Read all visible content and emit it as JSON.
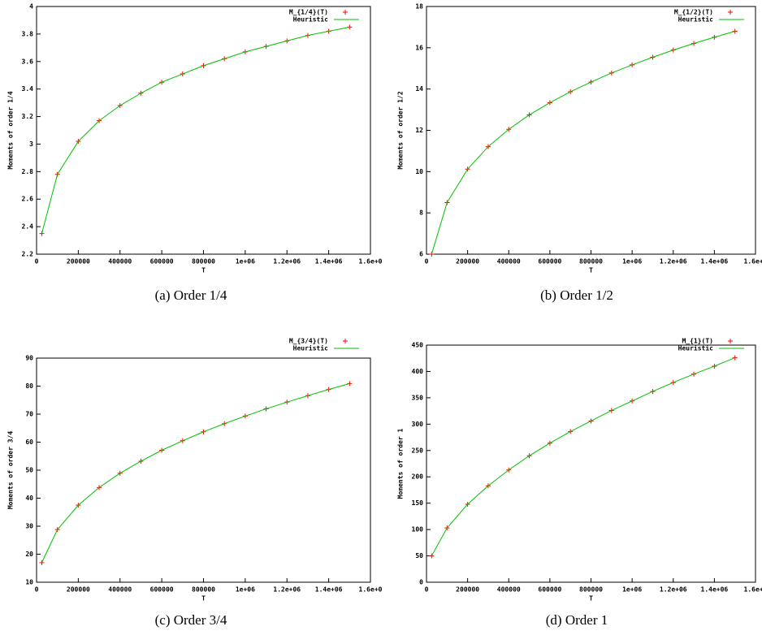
{
  "chart_data": [
    {
      "type": "line",
      "caption": "(a) Order 1/4",
      "x_label": "T",
      "y_label": "Moments of order 1/4",
      "x": [
        25000,
        100000,
        200000,
        300000,
        400000,
        500000,
        600000,
        700000,
        800000,
        900000,
        1000000,
        1100000,
        1200000,
        1300000,
        1400000,
        1500000
      ],
      "series": [
        {
          "name": "M_{1/4}(T)",
          "color": "#ff0000",
          "mode": "markers",
          "values": [
            2.35,
            2.78,
            3.02,
            3.17,
            3.28,
            3.37,
            3.45,
            3.51,
            3.57,
            3.62,
            3.67,
            3.71,
            3.75,
            3.79,
            3.82,
            3.85
          ]
        },
        {
          "name": "Heuristic",
          "color": "#00c000",
          "mode": "lines",
          "values": [
            2.35,
            2.78,
            3.02,
            3.17,
            3.28,
            3.37,
            3.45,
            3.51,
            3.57,
            3.62,
            3.67,
            3.71,
            3.75,
            3.79,
            3.82,
            3.85
          ]
        }
      ],
      "xlim": [
        0,
        1600000
      ],
      "xticks": [
        0,
        200000,
        400000,
        600000,
        800000,
        {
          "value": 1000000,
          "label": "1e+06"
        },
        {
          "value": 1200000,
          "label": "1.2e+06"
        },
        {
          "value": 1400000,
          "label": "1.4e+06"
        },
        {
          "value": 1600000,
          "label": "1.6e+0"
        }
      ],
      "ylim": [
        2.2,
        4
      ],
      "yticks": [
        2.2,
        2.4,
        2.6,
        2.8,
        3,
        3.2,
        3.4,
        3.6,
        3.8,
        4
      ]
    },
    {
      "type": "line",
      "caption": "(b) Order 1/2",
      "x_label": "T",
      "y_label": "Moments of order 1/2",
      "x": [
        25000,
        100000,
        200000,
        300000,
        400000,
        500000,
        600000,
        700000,
        800000,
        900000,
        1000000,
        1100000,
        1200000,
        1300000,
        1400000,
        1500000
      ],
      "series": [
        {
          "name": "M_{1/2}(T)",
          "color": "#ff0000",
          "mode": "markers",
          "values": [
            6.0,
            8.5,
            10.12,
            11.21,
            12.05,
            12.75,
            13.34,
            13.87,
            14.34,
            14.78,
            15.17,
            15.54,
            15.89,
            16.21,
            16.51,
            16.8
          ]
        },
        {
          "name": "Heuristic",
          "color": "#00c000",
          "mode": "lines",
          "values": [
            6.0,
            8.5,
            10.12,
            11.21,
            12.05,
            12.75,
            13.34,
            13.87,
            14.34,
            14.78,
            15.17,
            15.54,
            15.89,
            16.21,
            16.51,
            16.8
          ]
        }
      ],
      "xlim": [
        0,
        1600000
      ],
      "xticks": [
        0,
        200000,
        400000,
        600000,
        800000,
        {
          "value": 1000000,
          "label": "1e+06"
        },
        {
          "value": 1200000,
          "label": "1.2e+06"
        },
        {
          "value": 1400000,
          "label": "1.4e+06"
        },
        {
          "value": 1600000,
          "label": "1.6e+0"
        }
      ],
      "ylim": [
        6,
        18
      ],
      "yticks": [
        6,
        8,
        10,
        12,
        14,
        16,
        18
      ]
    },
    {
      "type": "line",
      "caption": "(c) Order 3/4",
      "x_label": "T",
      "y_label": "Moments of order 3/4",
      "x": [
        25000,
        100000,
        200000,
        300000,
        400000,
        500000,
        600000,
        700000,
        800000,
        900000,
        1000000,
        1100000,
        1200000,
        1300000,
        1400000,
        1500000
      ],
      "series": [
        {
          "name": "M_{3/4}(T)",
          "color": "#ff0000",
          "mode": "markers",
          "values": [
            17.0,
            28.8,
            37.5,
            43.8,
            48.9,
            53.2,
            57.1,
            60.5,
            63.7,
            66.6,
            69.3,
            71.9,
            74.3,
            76.6,
            78.8,
            80.9
          ]
        },
        {
          "name": "Heuristic",
          "color": "#00c000",
          "mode": "lines",
          "values": [
            17.0,
            28.8,
            37.5,
            43.8,
            48.9,
            53.2,
            57.1,
            60.5,
            63.7,
            66.6,
            69.3,
            71.9,
            74.3,
            76.6,
            78.8,
            80.9
          ]
        }
      ],
      "xlim": [
        0,
        1600000
      ],
      "xticks": [
        0,
        200000,
        400000,
        600000,
        800000,
        {
          "value": 1000000,
          "label": "1e+06"
        },
        {
          "value": 1200000,
          "label": "1.2e+06"
        },
        {
          "value": 1400000,
          "label": "1.4e+06"
        },
        {
          "value": 1600000,
          "label": "1.6e+0"
        }
      ],
      "ylim": [
        10,
        90
      ],
      "yticks": [
        10,
        20,
        30,
        40,
        50,
        60,
        70,
        80,
        90
      ]
    },
    {
      "type": "line",
      "caption": "(d) Order 1",
      "x_label": "T",
      "y_label": "Moments of order 1",
      "x": [
        25000,
        100000,
        200000,
        300000,
        400000,
        500000,
        600000,
        700000,
        800000,
        900000,
        1000000,
        1100000,
        1200000,
        1300000,
        1400000,
        1500000
      ],
      "series": [
        {
          "name": "M_{1}(T)",
          "color": "#ff0000",
          "mode": "markers",
          "values": [
            50,
            103,
            148,
            183,
            213,
            240,
            264,
            286,
            306,
            326,
            344,
            362,
            379,
            395,
            410,
            426
          ]
        },
        {
          "name": "Heuristic",
          "color": "#00c000",
          "mode": "lines",
          "values": [
            50,
            103,
            148,
            183,
            213,
            240,
            264,
            286,
            306,
            326,
            344,
            362,
            379,
            395,
            410,
            426
          ]
        }
      ],
      "xlim": [
        0,
        1600000
      ],
      "xticks": [
        0,
        200000,
        400000,
        600000,
        800000,
        {
          "value": 1000000,
          "label": "1e+06"
        },
        {
          "value": 1200000,
          "label": "1.2e+06"
        },
        {
          "value": 1400000,
          "label": "1.4e+06"
        },
        {
          "value": 1600000,
          "label": "1.6e+0"
        }
      ],
      "ylim": [
        0,
        450
      ],
      "yticks": [
        0,
        50,
        100,
        150,
        200,
        250,
        300,
        350,
        400,
        450
      ]
    }
  ]
}
